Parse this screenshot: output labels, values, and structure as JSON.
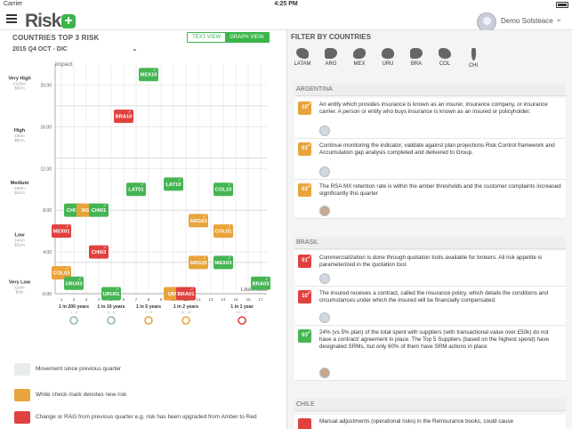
{
  "status": {
    "carrier": "Carrier",
    "time": "4:25 PM"
  },
  "app": {
    "logo_text": "Risk",
    "logo_plus": "+",
    "user_name": "Demo Solsteace",
    "user_menu_icon": "chevron-down-icon"
  },
  "left": {
    "title": "COUNTRIES TOP 3 RISK",
    "period": "2015 Q4 OCT - DIC",
    "view_toggle": [
      "TEXT VIEW",
      "GRAPH VIEW"
    ],
    "active_view": "GRAPH VIEW"
  },
  "chart_data": {
    "type": "scatter",
    "title": "",
    "ylabel": "Impact",
    "xlabel": "Likelihood",
    "y_ticks": [
      "20.00",
      "16.00",
      "12.00",
      "8.00",
      "4.00",
      "-0.00"
    ],
    "y_bands": [
      {
        "label": "Very High",
        "sub": [
          "£100m",
          "$81m"
        ]
      },
      {
        "label": "High",
        "sub": [
          "£60m",
          "$81m"
        ]
      },
      {
        "label": "Medium",
        "sub": [
          "£60m",
          "$41m"
        ]
      },
      {
        "label": "Low",
        "sub": [
          "£40m",
          "$21m"
        ]
      },
      {
        "label": "Very Low",
        "sub": [
          "£20m",
          "$0m"
        ]
      }
    ],
    "x_ticks": [
      "1",
      "2",
      "3",
      "4",
      "5",
      "6",
      "7",
      "8",
      "9",
      "10",
      "11",
      "12",
      "13",
      "14",
      "15",
      "16",
      "17"
    ],
    "x_bands": [
      "1 in 200 years",
      "1 in 10 years",
      "1 in 5 years",
      "1 in 2 years",
      "1 in 1 year"
    ],
    "x_band_ranges": [
      "1 - 3",
      "4 - 6",
      "7 - 9",
      "10 - 12",
      "13 - 17"
    ],
    "ring_colors": [
      "#8fb8a6",
      "#8fb8a6",
      "#e8a33a",
      "#e8a33a",
      "#e0413f"
    ],
    "ylim": [
      0,
      22
    ],
    "xlim": [
      0.5,
      17.5
    ],
    "points": [
      {
        "label": "MEX10",
        "x": 8,
        "y": 21,
        "color": "#45b553"
      },
      {
        "label": "BRA10",
        "x": 6,
        "y": 17,
        "color": "#e0413f"
      },
      {
        "label": "LAT01",
        "x": 7,
        "y": 10,
        "color": "#45b553"
      },
      {
        "label": "LAT10",
        "x": 10,
        "y": 10.5,
        "color": "#45b553"
      },
      {
        "label": "COL10",
        "x": 14,
        "y": 10,
        "color": "#45b553"
      },
      {
        "label": "CHI10",
        "x": 2,
        "y": 8,
        "color": "#45b553"
      },
      {
        "label": "RGI",
        "x": 3,
        "y": 8,
        "color": "#e8a33a"
      },
      {
        "label": "CHI01",
        "x": 4,
        "y": 8,
        "color": "#45b553"
      },
      {
        "label": "ARG03",
        "x": 12,
        "y": 7,
        "color": "#e8a33a"
      },
      {
        "label": "COL01",
        "x": 14,
        "y": 6,
        "color": "#e8a33a"
      },
      {
        "label": "MEX01",
        "x": 1,
        "y": 6,
        "color": "#e0413f"
      },
      {
        "label": "CHI03",
        "x": 4,
        "y": 4,
        "color": "#e0413f"
      },
      {
        "label": "ARG10",
        "x": 12,
        "y": 3,
        "color": "#e8a33a"
      },
      {
        "label": "MEX03",
        "x": 14,
        "y": 3,
        "color": "#45b553"
      },
      {
        "label": "COL03",
        "x": 1,
        "y": 2,
        "color": "#e8a33a"
      },
      {
        "label": "URU03",
        "x": 2,
        "y": 1,
        "color": "#45b553"
      },
      {
        "label": "BRA03",
        "x": 17,
        "y": 1,
        "color": "#45b553"
      },
      {
        "label": "URU01",
        "x": 5,
        "y": 0,
        "color": "#45b553"
      },
      {
        "label": "URU",
        "x": 10,
        "y": 0,
        "color": "#e8a33a"
      },
      {
        "label": "BRA01",
        "x": 11,
        "y": 0,
        "color": "#e0413f"
      }
    ]
  },
  "legend": [
    {
      "text": "Movement since previous quarter",
      "color": "#e9ecec"
    },
    {
      "text": "White check mark denotes new risk",
      "color": "#e8a33a"
    },
    {
      "text": "Change or RAG from previous quarter e.g. risk has been upgraded from Amber to Red",
      "color": "#e0413f"
    }
  ],
  "filter": {
    "title": "FILTER BY COUNTRIES",
    "countries": [
      "LATAM",
      "ARG",
      "MEX",
      "URU",
      "BRA",
      "COL",
      "CHI"
    ]
  },
  "sections": [
    {
      "name": "ARGENTINA",
      "risks": [
        {
          "code": "10",
          "color": "#e8a33a",
          "text": "An entity which provides insurance is known as an insurer, insurance company, or insurance carrier. A person or entity who buys insurance is known as an insured or policyholder.",
          "avatar": "default"
        },
        {
          "code": "01",
          "color": "#e8a33a",
          "text": "Continue monitoring the indicator, validate against plan projections Risk Control framework and Accumulation gap analysis completed and delivered to Group.",
          "avatar": "default"
        },
        {
          "code": "03",
          "color": "#e8a33a",
          "text": "The RSA MX retention rate is within the amber thresholds and the customer complaints increased significantly this quarter",
          "avatar": "photo"
        }
      ]
    },
    {
      "name": "BRASIL",
      "risks": [
        {
          "code": "01",
          "color": "#e0413f",
          "text": "Commercialization is done through quotation tools available for brokers. All risk appetite is parameterized in the quotation tool.",
          "avatar": "default"
        },
        {
          "code": "10",
          "color": "#e0413f",
          "text": "The insured receives a contract, called the insurance policy, which details the conditions and circumstances under which the insured will be financially compensated.",
          "avatar": "default"
        },
        {
          "code": "03",
          "color": "#45b553",
          "text": "24% (vs 5% plan) of the total spent with suppliers (with transactional value over £50k) do not have a contract/ agreement in place. The Top 5 Suppliers (based on the highest spend) have designated SRMs, but only 60% of them have SRM actions in place",
          "avatar": "photo"
        }
      ]
    },
    {
      "name": "CHILE",
      "risks": [
        {
          "code": "",
          "color": "#e0413f",
          "text": "Manual adjustments (operational risks) in the Reinsurance books, could cause",
          "avatar": ""
        }
      ]
    }
  ]
}
